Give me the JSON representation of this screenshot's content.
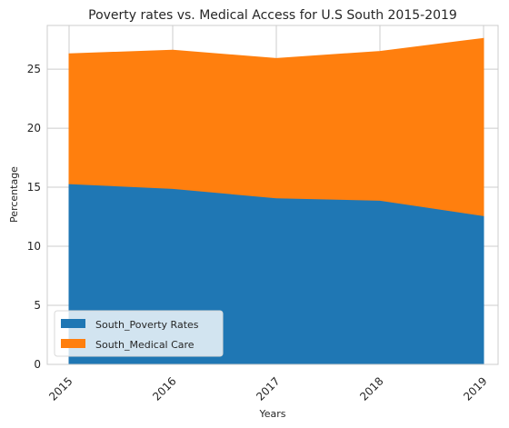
{
  "chart_data": {
    "type": "area",
    "stacked": true,
    "title": "Poverty rates vs. Medical Access for U.S South 2015-2019",
    "xlabel": "Years",
    "ylabel": "Percentage",
    "x": [
      "2015",
      "2016",
      "2017",
      "2018",
      "2019"
    ],
    "ylim": [
      0,
      28.7
    ],
    "yticks": [
      0,
      5,
      10,
      15,
      20,
      25
    ],
    "grid": true,
    "legend_position": "lower-left",
    "series": [
      {
        "name": "South_Poverty Rates",
        "color": "#1f77b4",
        "values": [
          15.3,
          14.9,
          14.1,
          13.9,
          12.6
        ]
      },
      {
        "name": "South_Medical Care",
        "color": "#ff7f0e",
        "values": [
          11.0,
          11.7,
          11.8,
          12.6,
          15.0
        ]
      }
    ]
  }
}
